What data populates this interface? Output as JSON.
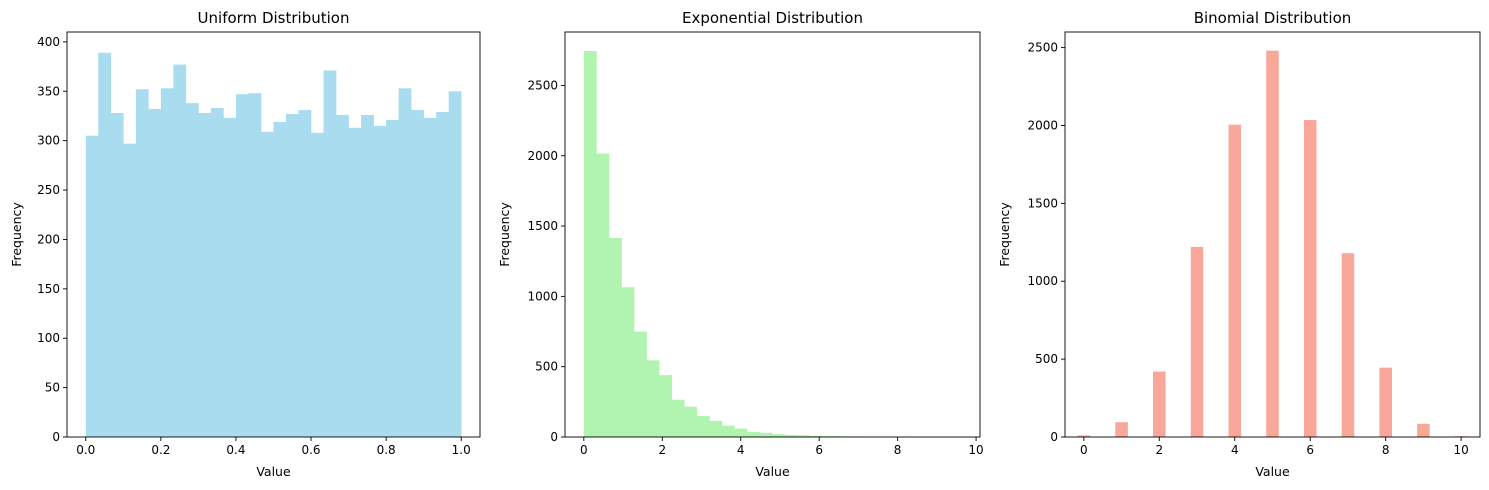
{
  "chart_data": [
    {
      "type": "bar",
      "title": "Uniform Distribution",
      "xlabel": "Value",
      "ylabel": "Frequency",
      "color": "#a8dcee",
      "xlim": [
        -0.05,
        1.05
      ],
      "ylim": [
        0,
        410
      ],
      "xticks": [
        0.0,
        0.2,
        0.4,
        0.6,
        0.8,
        1.0
      ],
      "xtick_labels": [
        "0.0",
        "0.2",
        "0.4",
        "0.6",
        "0.8",
        "1.0"
      ],
      "yticks": [
        0,
        50,
        100,
        150,
        200,
        250,
        300,
        350,
        400
      ],
      "ytick_labels": [
        "0",
        "50",
        "100",
        "150",
        "200",
        "250",
        "300",
        "350",
        "400"
      ],
      "bin_start": 0.0,
      "bin_width": 0.03333,
      "values": [
        305,
        389,
        328,
        297,
        352,
        332,
        353,
        377,
        338,
        328,
        333,
        323,
        347,
        348,
        309,
        319,
        327,
        331,
        308,
        371,
        326,
        313,
        326,
        315,
        321,
        353,
        331,
        323,
        329,
        350
      ]
    },
    {
      "type": "bar",
      "title": "Exponential Distribution",
      "xlabel": "Value",
      "ylabel": "Frequency",
      "color": "#b0f4b0",
      "xlim": [
        -0.48,
        10.1
      ],
      "ylim": [
        0,
        2880
      ],
      "xticks": [
        0,
        2,
        4,
        6,
        8,
        10
      ],
      "xtick_labels": [
        "0",
        "2",
        "4",
        "6",
        "8",
        "10"
      ],
      "yticks": [
        0,
        500,
        1000,
        1500,
        2000,
        2500
      ],
      "ytick_labels": [
        "0",
        "500",
        "1000",
        "1500",
        "2000",
        "2500"
      ],
      "bin_start": 0.0,
      "bin_width": 0.32,
      "values": [
        2745,
        2015,
        1415,
        1065,
        750,
        545,
        440,
        265,
        215,
        150,
        115,
        80,
        60,
        35,
        30,
        20,
        15,
        12,
        8,
        6,
        5,
        4,
        3,
        2,
        2,
        2,
        1,
        1,
        1,
        1
      ]
    },
    {
      "type": "bar",
      "title": "Binomial Distribution",
      "xlabel": "Value",
      "ylabel": "Frequency",
      "color": "#f9a79b",
      "xlim": [
        -0.5,
        10.5
      ],
      "ylim": [
        0,
        2600
      ],
      "xticks": [
        0,
        2,
        4,
        6,
        8,
        10
      ],
      "xtick_labels": [
        "0",
        "2",
        "4",
        "6",
        "8",
        "10"
      ],
      "yticks": [
        0,
        500,
        1000,
        1500,
        2000,
        2500
      ],
      "ytick_labels": [
        "0",
        "500",
        "1000",
        "1500",
        "2000",
        "2500"
      ],
      "bin_width": 0.3333,
      "bars": [
        {
          "x": 0,
          "value": 10
        },
        {
          "x": 1,
          "value": 95
        },
        {
          "x": 2,
          "value": 420
        },
        {
          "x": 3,
          "value": 1220
        },
        {
          "x": 4,
          "value": 2005
        },
        {
          "x": 5,
          "value": 2480
        },
        {
          "x": 6,
          "value": 2035
        },
        {
          "x": 7,
          "value": 1180
        },
        {
          "x": 8,
          "value": 445
        },
        {
          "x": 9,
          "value": 85
        },
        {
          "x": 10,
          "value": 5
        }
      ]
    }
  ]
}
